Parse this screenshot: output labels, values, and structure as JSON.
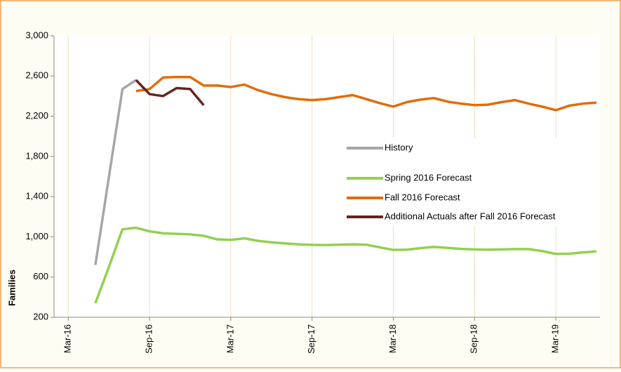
{
  "chart_data": {
    "type": "line",
    "y_label": "Families",
    "categories": [
      null,
      "Mar-16",
      null,
      null,
      null,
      null,
      null,
      "Sep-16",
      null,
      null,
      null,
      null,
      null,
      "Mar-17",
      null,
      null,
      null,
      null,
      null,
      "Sep-17",
      null,
      null,
      null,
      null,
      null,
      "Mar-18",
      null,
      null,
      null,
      null,
      null,
      "Sep-18",
      null,
      null,
      null,
      null,
      null,
      "Mar-19",
      null,
      null,
      null
    ],
    "series": [
      {
        "name": "History",
        "color": "#a6a6a6",
        "values": [
          null,
          null,
          null,
          720,
          1595,
          2470,
          2560,
          null,
          null,
          null,
          null,
          null,
          null,
          null,
          null,
          null,
          null,
          null,
          null,
          null,
          null,
          null,
          null,
          null,
          null,
          null,
          null,
          null,
          null,
          null,
          null,
          null,
          null,
          null,
          null,
          null,
          null,
          null,
          null,
          null,
          null
        ]
      },
      {
        "name": "Spring 2016 Forecast",
        "color": "#92d050",
        "values": [
          null,
          null,
          null,
          340,
          700,
          1075,
          1090,
          1055,
          1035,
          1030,
          1025,
          1010,
          975,
          970,
          985,
          960,
          945,
          935,
          925,
          920,
          918,
          922,
          925,
          922,
          895,
          870,
          872,
          888,
          900,
          890,
          880,
          875,
          872,
          875,
          878,
          878,
          858,
          830,
          832,
          845,
          855
        ]
      },
      {
        "name": "Fall 2016 Forecast",
        "color": "#e36c09",
        "values": [
          null,
          null,
          null,
          null,
          null,
          null,
          2450,
          2470,
          2585,
          2590,
          2590,
          2505,
          2505,
          2490,
          2515,
          2460,
          2420,
          2390,
          2370,
          2360,
          2370,
          2390,
          2410,
          2370,
          2330,
          2295,
          2340,
          2365,
          2380,
          2345,
          2325,
          2310,
          2315,
          2340,
          2360,
          2325,
          2295,
          2260,
          2305,
          2325,
          2335
        ]
      },
      {
        "name": "Additional Actuals after Fall 2016 Forecast",
        "color": "#632523",
        "values": [
          null,
          null,
          null,
          null,
          null,
          null,
          2560,
          2420,
          2400,
          2480,
          2470,
          2310,
          null,
          null,
          null,
          null,
          null,
          null,
          null,
          null,
          null,
          null,
          null,
          null,
          null,
          null,
          null,
          null,
          null,
          null,
          null,
          null,
          null,
          null,
          null,
          null,
          null,
          null,
          null,
          null,
          null
        ]
      }
    ],
    "ylim": [
      200,
      3000
    ],
    "yticks": [
      200,
      {
        "value": 600,
        "label": "600"
      },
      {
        "value": 1000,
        "label": "1,000"
      },
      {
        "value": 1400,
        "label": "1,400"
      },
      {
        "value": 1800,
        "label": "1,800"
      },
      {
        "value": 2200,
        "label": "2,200"
      },
      {
        "value": 2600,
        "label": "2,600"
      },
      {
        "value": 3000,
        "label": "3,000"
      }
    ],
    "grid": "x",
    "legend": "right"
  }
}
